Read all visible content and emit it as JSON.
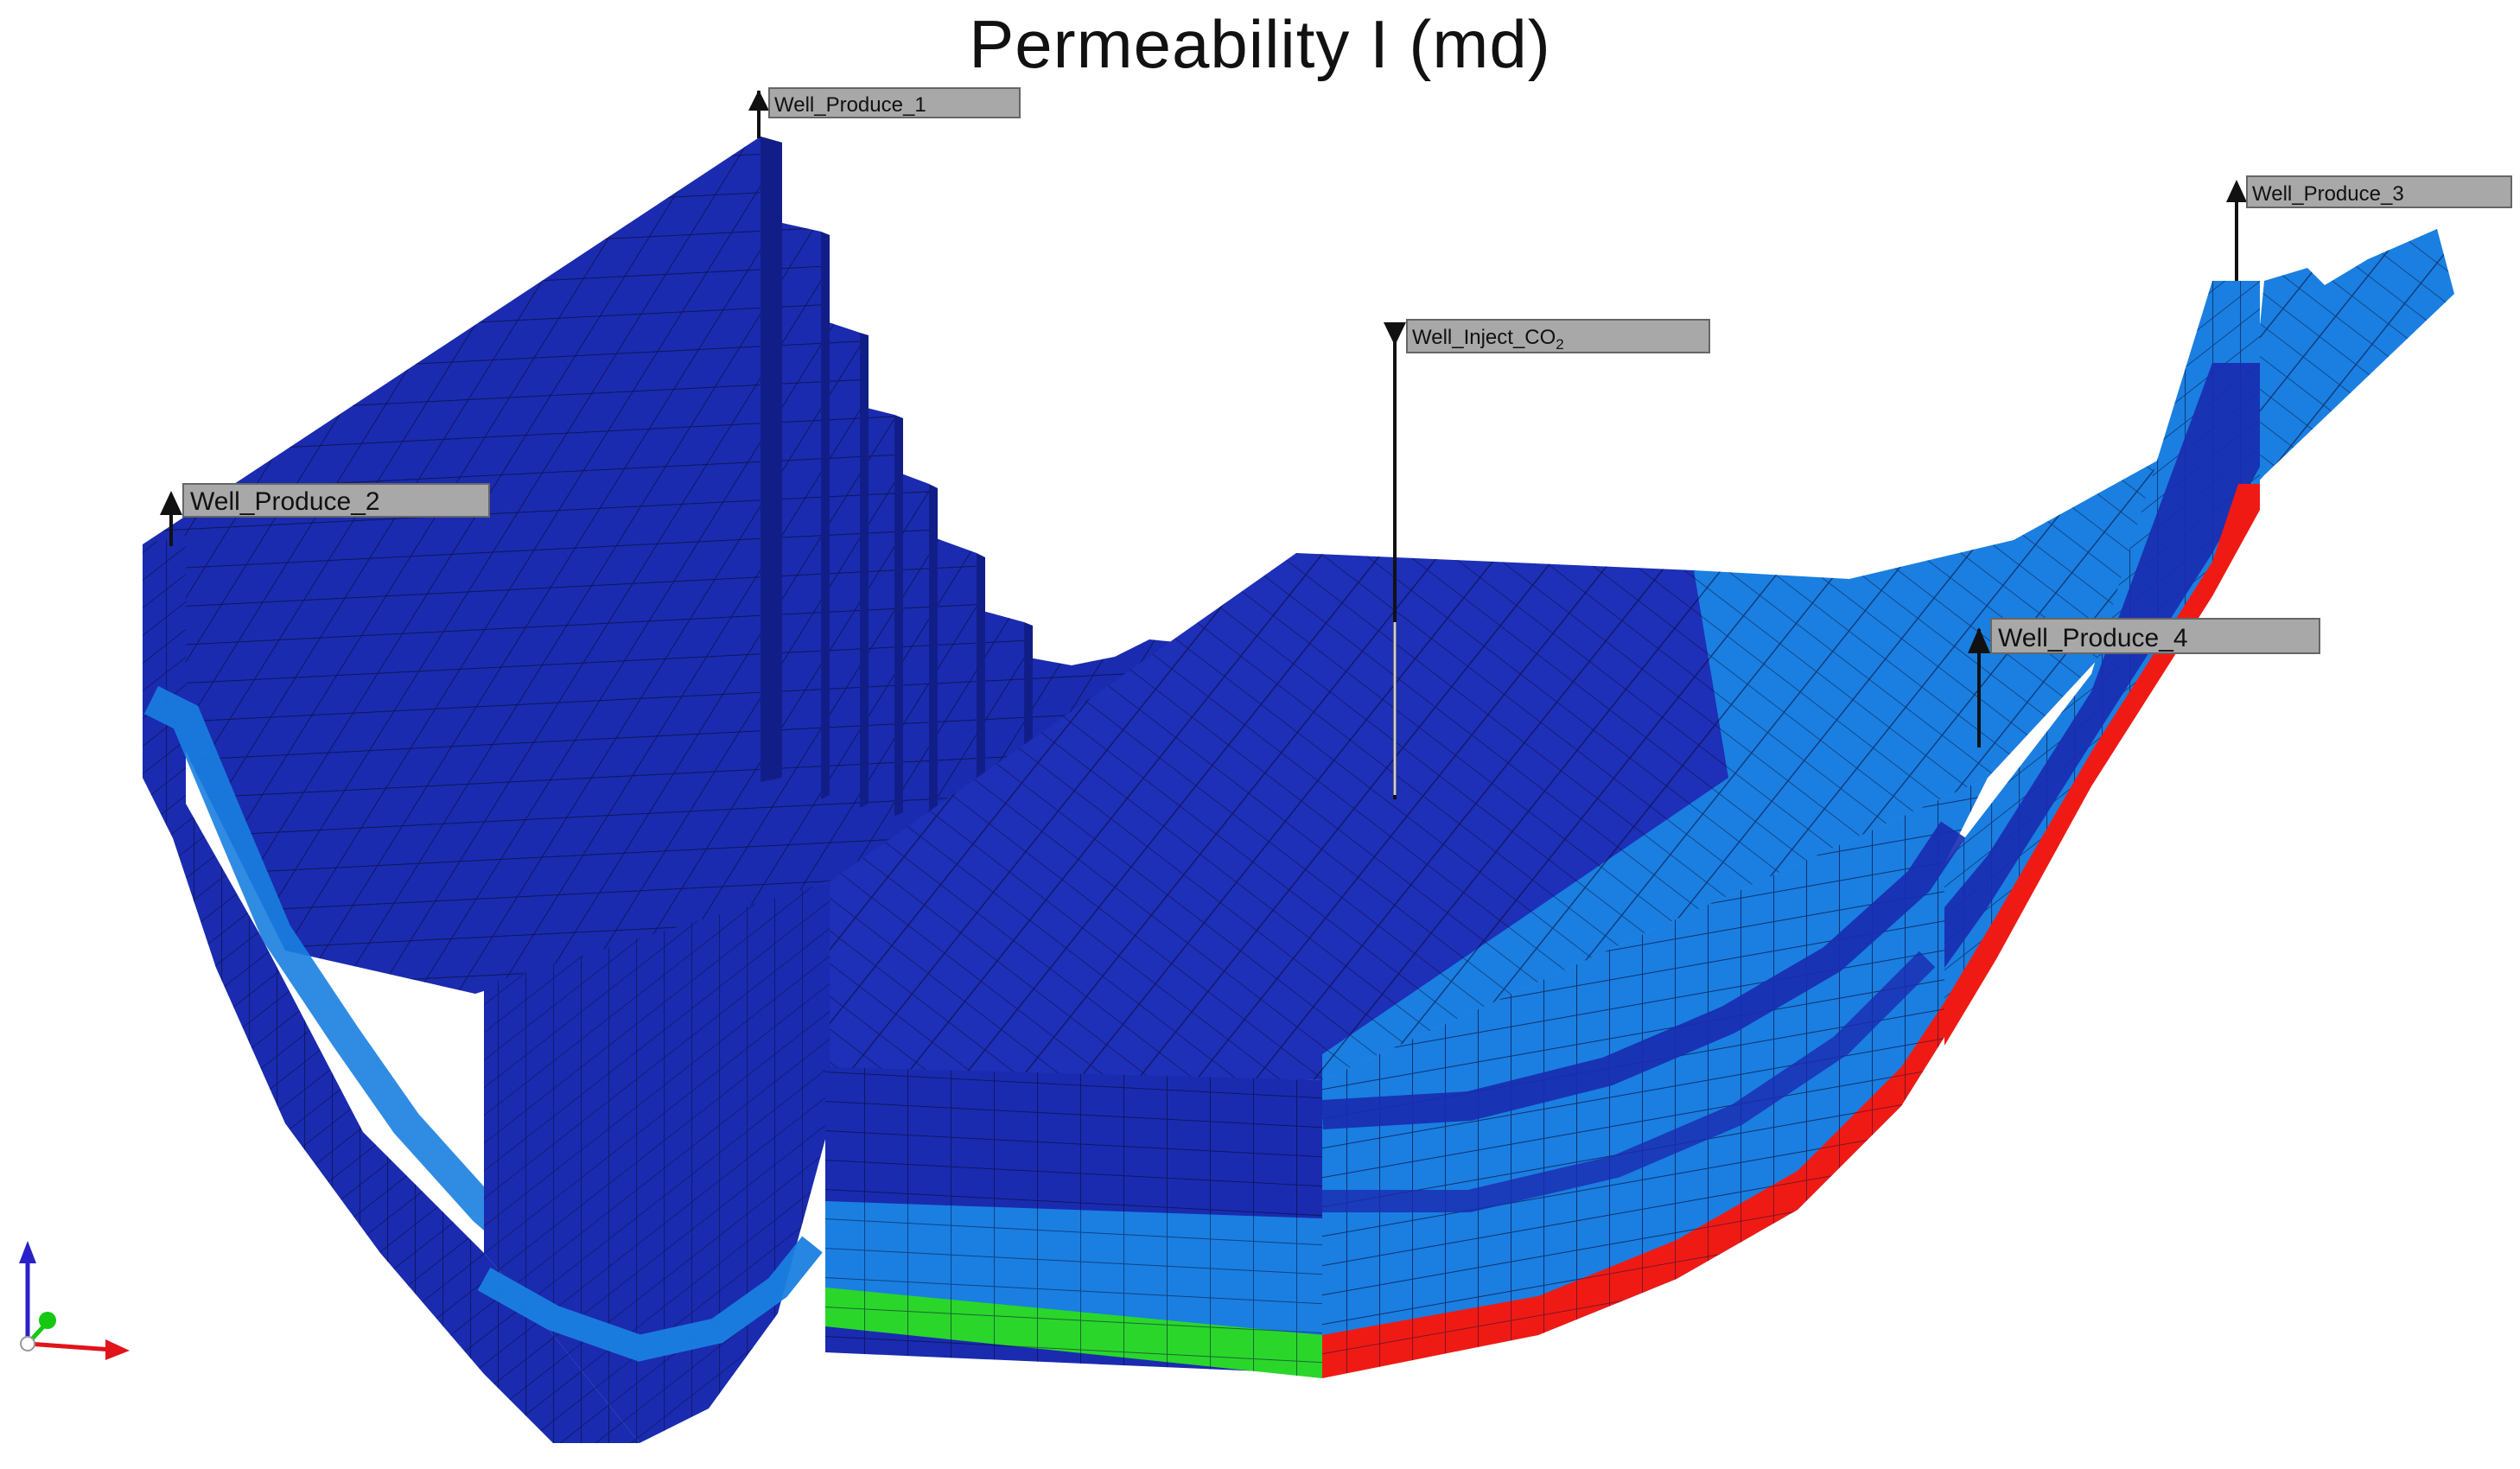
{
  "title": "Permeability I (md)",
  "colors": {
    "background": "#ffffff",
    "dark_blue": "#1a2bb0",
    "dark_blue_shade": "#121e87",
    "top_face": "#2736c2",
    "light_blue": "#1a7fe0",
    "light_blue_top": "#2b8ce8",
    "green": "#2ad62a",
    "red": "#f01a14",
    "label_box": "#a8a8a8",
    "grid_line": "#0a0f3c"
  },
  "wells": [
    {
      "name": "Well_Produce_1",
      "type": "producer",
      "icon": "arrow-up-icon"
    },
    {
      "name": "Well_Produce_2",
      "type": "producer",
      "icon": "arrow-up-icon"
    },
    {
      "name": "Well_Produce_3",
      "type": "producer",
      "icon": "arrow-up-icon"
    },
    {
      "name": "Well_Produce_4",
      "type": "producer",
      "icon": "arrow-up-icon"
    },
    {
      "name": "Well_Inject_CO",
      "name_subscript": "2",
      "type": "injector",
      "icon": "arrow-down-icon"
    }
  ],
  "axes": {
    "icon": "xyz-axes-icon",
    "colors": {
      "x": "#e0141a",
      "y": "#14c814",
      "z": "#2a20c8"
    }
  }
}
